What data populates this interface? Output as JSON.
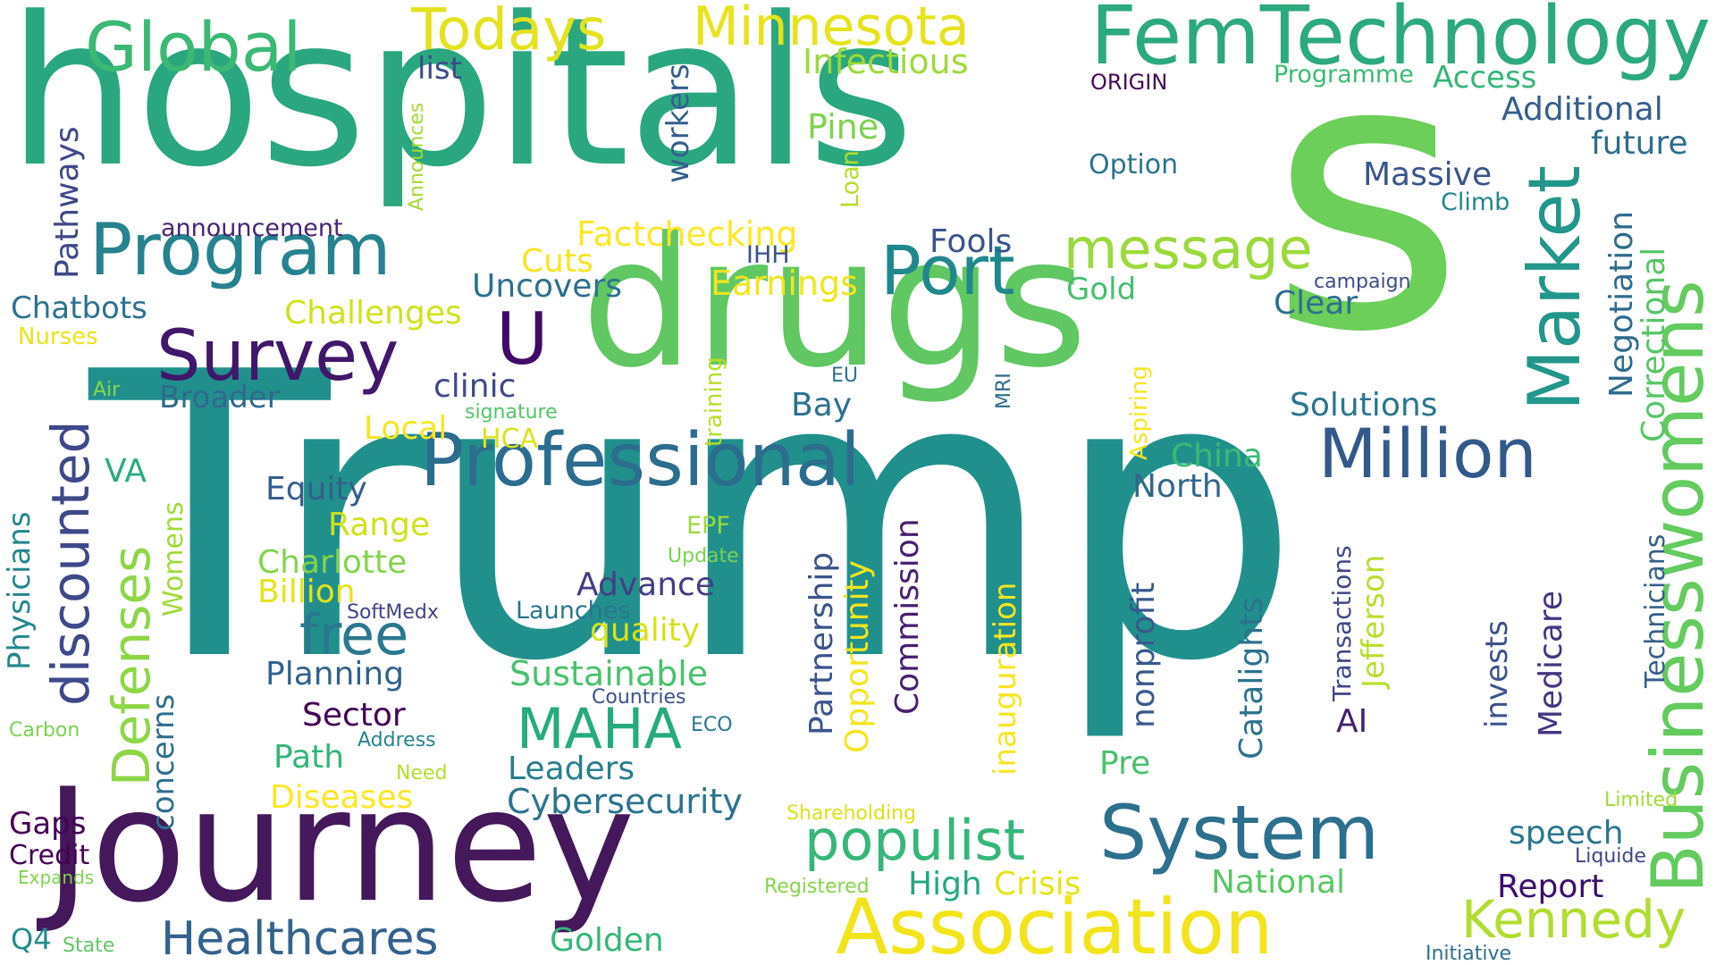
{
  "words": [
    {
      "text": "Trump",
      "color": "#21908d"
    },
    {
      "text": "hospitals",
      "color": "#2aa77f"
    },
    {
      "text": "s",
      "color": "#6ccf59"
    },
    {
      "text": "drugs",
      "color": "#60c762"
    },
    {
      "text": "Journey",
      "color": "#44185a"
    },
    {
      "text": "FemTechnology",
      "color": "#2ca97d"
    },
    {
      "text": "Program",
      "color": "#26828e"
    },
    {
      "text": "Professional",
      "color": "#2c6d8e"
    },
    {
      "text": "Survey",
      "color": "#40176a"
    },
    {
      "text": "Association",
      "color": "#f2e41b"
    },
    {
      "text": "System",
      "color": "#2d708e"
    },
    {
      "text": "Businesswomens",
      "color": "#64cb5f"
    },
    {
      "text": "Million",
      "color": "#33598b"
    },
    {
      "text": "Market",
      "color": "#22968a"
    },
    {
      "text": "Port",
      "color": "#20878d"
    },
    {
      "text": "Global",
      "color": "#3cb875"
    },
    {
      "text": "Minnesota",
      "color": "#e7e31b"
    },
    {
      "text": "Todays",
      "color": "#e3e21c"
    },
    {
      "text": "message",
      "color": "#9bd93c"
    },
    {
      "text": "Healthcares",
      "color": "#33628d"
    },
    {
      "text": "populist",
      "color": "#35b779"
    },
    {
      "text": "Kennedy",
      "color": "#b0dd2f"
    },
    {
      "text": "discounted",
      "color": "#3e4989"
    },
    {
      "text": "Defenses",
      "color": "#8ed645"
    },
    {
      "text": "free",
      "color": "#2a788e"
    },
    {
      "text": "MAHA",
      "color": "#24ac7c"
    },
    {
      "text": "U",
      "color": "#420a68"
    },
    {
      "text": "Infectious",
      "color": "#9fda3a"
    },
    {
      "text": "Additional",
      "color": "#365d8d"
    },
    {
      "text": "future",
      "color": "#2e6e8e"
    },
    {
      "text": "Massive",
      "color": "#39558c"
    },
    {
      "text": "Access",
      "color": "#34b679"
    },
    {
      "text": "Programme",
      "color": "#3bbb75"
    },
    {
      "text": "ORIGIN",
      "color": "#46085c"
    },
    {
      "text": "Option",
      "color": "#2b748e"
    },
    {
      "text": "Climb",
      "color": "#25858e"
    },
    {
      "text": "list",
      "color": "#3d4b89"
    },
    {
      "text": "workers",
      "color": "#355f8d"
    },
    {
      "text": "Pine",
      "color": "#7fd34e"
    },
    {
      "text": "Loan",
      "color": "#b5de2b"
    },
    {
      "text": "Announces",
      "color": "#a5db36"
    },
    {
      "text": "Pathways",
      "color": "#3f4889"
    },
    {
      "text": "announcement",
      "color": "#482475"
    },
    {
      "text": "Chatbots",
      "color": "#2c728e"
    },
    {
      "text": "Nurses",
      "color": "#eae51a"
    },
    {
      "text": "Factchecking",
      "color": "#fde725"
    },
    {
      "text": "Cuts",
      "color": "#f8e621"
    },
    {
      "text": "IHH",
      "color": "#3b528b"
    },
    {
      "text": "Uncovers",
      "color": "#2d718e"
    },
    {
      "text": "Earnings",
      "color": "#f1e51d"
    },
    {
      "text": "Fools",
      "color": "#3a548c"
    },
    {
      "text": "Gold",
      "color": "#44bf70"
    },
    {
      "text": "Clear",
      "color": "#2e6f8e"
    },
    {
      "text": "campaign",
      "color": "#3e4c8a"
    },
    {
      "text": "Negotiation",
      "color": "#2f6c8e"
    },
    {
      "text": "Correctional",
      "color": "#56c667"
    },
    {
      "text": "Challenges",
      "color": "#d2e21b"
    },
    {
      "text": "Air",
      "color": "#8bd646"
    },
    {
      "text": "Broader",
      "color": "#31688e"
    },
    {
      "text": "clinic",
      "color": "#3e4a89"
    },
    {
      "text": "signature",
      "color": "#52c569"
    },
    {
      "text": "training",
      "color": "#b8de29"
    },
    {
      "text": "EU",
      "color": "#2c738e"
    },
    {
      "text": "MRI",
      "color": "#2e6d8e"
    },
    {
      "text": "Aspiring",
      "color": "#f6e620"
    },
    {
      "text": "Solutions",
      "color": "#2b758e"
    },
    {
      "text": "Bay",
      "color": "#2c718e"
    },
    {
      "text": "Local",
      "color": "#f8e621"
    },
    {
      "text": "HCA",
      "color": "#dde318"
    },
    {
      "text": "China",
      "color": "#3aba76"
    },
    {
      "text": "North",
      "color": "#31678e"
    },
    {
      "text": "VA",
      "color": "#26ad81"
    },
    {
      "text": "Equity",
      "color": "#355e8d"
    },
    {
      "text": "Range",
      "color": "#d0e11c"
    },
    {
      "text": "EPF",
      "color": "#9cd93b"
    },
    {
      "text": "Physicians",
      "color": "#24878e"
    },
    {
      "text": "Womens",
      "color": "#a0da39"
    },
    {
      "text": "Charlotte",
      "color": "#84d44b"
    },
    {
      "text": "Billion",
      "color": "#e5e419"
    },
    {
      "text": "Update",
      "color": "#7ad151"
    },
    {
      "text": "Advance",
      "color": "#433e85"
    },
    {
      "text": "SoftMedx",
      "color": "#414487"
    },
    {
      "text": "Launches",
      "color": "#2b758e"
    },
    {
      "text": "quality",
      "color": "#d8e219"
    },
    {
      "text": "Partnership",
      "color": "#3a548c"
    },
    {
      "text": "Opportunity",
      "color": "#f4e61e"
    },
    {
      "text": "Commission",
      "color": "#481f70"
    },
    {
      "text": "inauguration",
      "color": "#f6e620"
    },
    {
      "text": "nonprofit",
      "color": "#38598c"
    },
    {
      "text": "Catalights",
      "color": "#2c728e"
    },
    {
      "text": "Transactions",
      "color": "#3f4788"
    },
    {
      "text": "Jefferson",
      "color": "#b8de29"
    },
    {
      "text": "Technicians",
      "color": "#355f8d"
    },
    {
      "text": "invests",
      "color": "#3b528b"
    },
    {
      "text": "Medicare",
      "color": "#453581"
    },
    {
      "text": "Planning",
      "color": "#33628d"
    },
    {
      "text": "Sustainable",
      "color": "#4ac16d"
    },
    {
      "text": "Countries",
      "color": "#3b518b"
    },
    {
      "text": "Sector",
      "color": "#440154"
    },
    {
      "text": "ECO",
      "color": "#2a788e"
    },
    {
      "text": "AI",
      "color": "#482173"
    },
    {
      "text": "Carbon",
      "color": "#7ad151"
    },
    {
      "text": "Address",
      "color": "#25848e"
    },
    {
      "text": "concerns",
      "color": "#2e6e8e"
    },
    {
      "text": "Path",
      "color": "#32b67a"
    },
    {
      "text": "Leaders",
      "color": "#277f8e"
    },
    {
      "text": "Pre",
      "color": "#48c16e"
    },
    {
      "text": "Need",
      "color": "#b4de2c"
    },
    {
      "text": "Diseases",
      "color": "#fde725"
    },
    {
      "text": "Cybersecurity",
      "color": "#2c738e"
    },
    {
      "text": "Limited",
      "color": "#a2da37"
    },
    {
      "text": "Shareholding",
      "color": "#dde318"
    },
    {
      "text": "Gaps",
      "color": "#440154"
    },
    {
      "text": "Credit",
      "color": "#440154"
    },
    {
      "text": "speech",
      "color": "#2a778e"
    },
    {
      "text": "Liquide",
      "color": "#414487"
    },
    {
      "text": "Expands",
      "color": "#7fd34e"
    },
    {
      "text": "Registered",
      "color": "#84d44b"
    },
    {
      "text": "High",
      "color": "#22a884"
    },
    {
      "text": "Crisis",
      "color": "#e5e419"
    },
    {
      "text": "National",
      "color": "#58c765"
    },
    {
      "text": "Report",
      "color": "#3b0f70"
    },
    {
      "text": "Golden",
      "color": "#35b779"
    },
    {
      "text": "Q4",
      "color": "#228c8d"
    },
    {
      "text": "State",
      "color": "#5ec962"
    },
    {
      "text": "Initiative",
      "color": "#2e6e8e"
    }
  ]
}
